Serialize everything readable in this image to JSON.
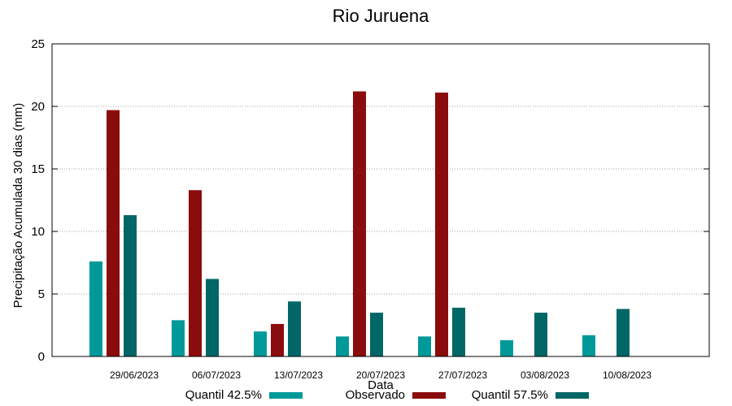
{
  "chart_data": {
    "type": "bar",
    "title": "Rio Juruena",
    "xlabel": "Data",
    "ylabel": "Precipitação Acumulada 30 dias (mm)",
    "ylim": [
      0,
      25
    ],
    "yticks": [
      0,
      5,
      10,
      15,
      20,
      25
    ],
    "grid": true,
    "legend_position": "bottom",
    "categories": [
      "29/06/2023",
      "06/07/2023",
      "13/07/2023",
      "20/07/2023",
      "27/07/2023",
      "03/08/2023",
      "10/08/2023"
    ],
    "series": [
      {
        "name": "Quantil 42.5%",
        "color": "#009999",
        "values": [
          7.6,
          2.9,
          2.0,
          1.6,
          1.6,
          1.3,
          1.7
        ]
      },
      {
        "name": "Observado",
        "color": "#8b0c0c",
        "values": [
          19.7,
          13.3,
          2.6,
          21.2,
          21.1,
          null,
          null
        ]
      },
      {
        "name": "Quantil 57.5%",
        "color": "#006666",
        "values": [
          11.3,
          6.2,
          4.4,
          3.5,
          3.9,
          3.5,
          3.8
        ]
      }
    ]
  }
}
